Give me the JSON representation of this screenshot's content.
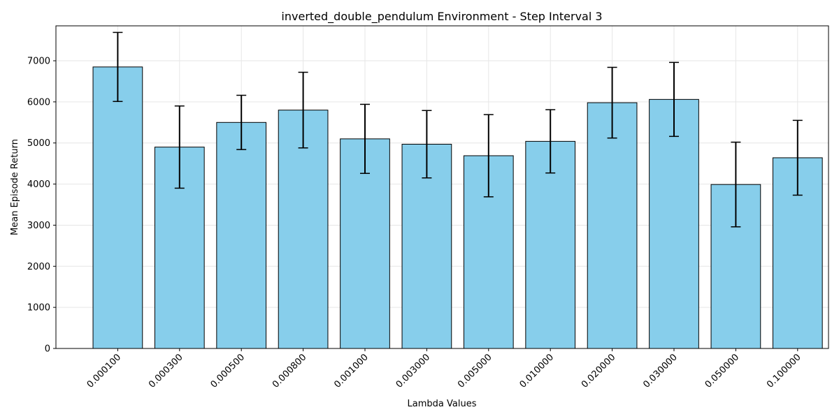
{
  "chart_data": {
    "type": "bar",
    "title": "inverted_double_pendulum Environment - Step Interval 3",
    "xlabel": "Lambda Values",
    "ylabel": "Mean Episode Return",
    "categories": [
      "0.000100",
      "0.000300",
      "0.000500",
      "0.000800",
      "0.001000",
      "0.003000",
      "0.005000",
      "0.010000",
      "0.020000",
      "0.030000",
      "0.050000",
      "0.100000"
    ],
    "values": [
      6850,
      4900,
      5500,
      5800,
      5100,
      4970,
      4690,
      5040,
      5980,
      6060,
      3990,
      4640
    ],
    "error": [
      840,
      1000,
      660,
      920,
      840,
      820,
      1000,
      770,
      860,
      900,
      1030,
      910
    ],
    "ylim": [
      0,
      7850
    ],
    "yticks": [
      0,
      1000,
      2000,
      3000,
      4000,
      5000,
      6000,
      7000
    ],
    "grid": true,
    "bar_color": "#87ceeb",
    "bar_edge_color": "#000000"
  }
}
